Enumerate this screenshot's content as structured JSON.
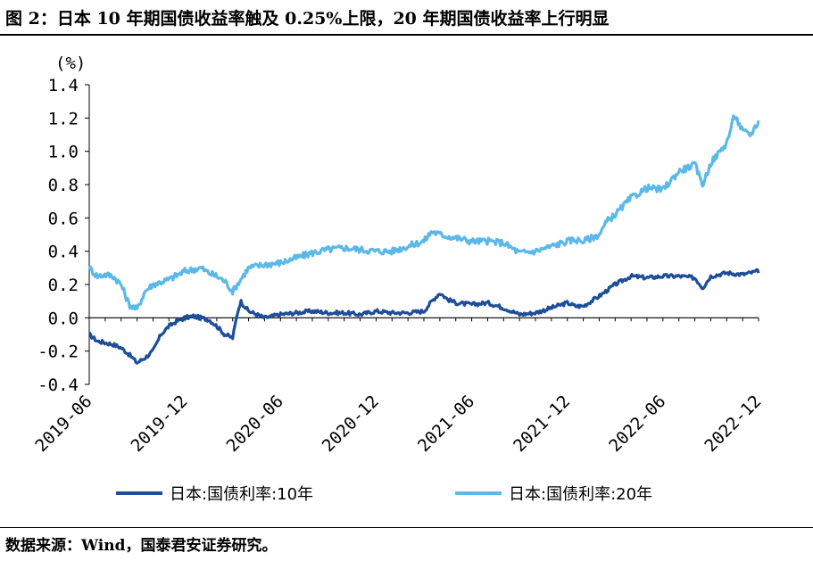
{
  "figure": {
    "title": "图 2：日本 10 年期国债收益率触及 0.25%上限，20 年期国债收益率上行明显",
    "source": "数据来源：Wind，国泰君安证券研究。"
  },
  "colors": {
    "series_10y": "#1F4E99",
    "series_20y": "#5BB9E9",
    "axis": "#000000"
  },
  "chart_data": {
    "type": "line",
    "title": "图 2：日本 10 年期国债收益率触及 0.25%上限，20 年期国债收益率上行明显",
    "ylabel": "(%)",
    "xlabel": "",
    "ylim": [
      -0.4,
      1.4
    ],
    "yticks": [
      "1.4",
      "1.2",
      "1.0",
      "0.8",
      "0.6",
      "0.4",
      "0.2",
      "0.0",
      "-0.2",
      "-0.4"
    ],
    "xlim_month_index": [
      0,
      42
    ],
    "xticks": [
      {
        "label": "2019-06",
        "month_index": 0
      },
      {
        "label": "2019-12",
        "month_index": 6
      },
      {
        "label": "2020-06",
        "month_index": 12
      },
      {
        "label": "2020-12",
        "month_index": 18
      },
      {
        "label": "2021-06",
        "month_index": 24
      },
      {
        "label": "2021-12",
        "month_index": 30
      },
      {
        "label": "2022-06",
        "month_index": 36
      },
      {
        "label": "2022-12",
        "month_index": 42
      }
    ],
    "legend_position": "bottom",
    "series": [
      {
        "name": "日本:国债利率:10年",
        "x": [
          0,
          0.5,
          1,
          1.5,
          2,
          2.5,
          3,
          3.5,
          4,
          4.5,
          5,
          5.5,
          6,
          6.5,
          7,
          7.5,
          8,
          8.5,
          9,
          9.3,
          9.5,
          10,
          10.5,
          11,
          11.5,
          12,
          13,
          14,
          15,
          16,
          17,
          18,
          19,
          20,
          21,
          21.5,
          22,
          22.5,
          23,
          24,
          25,
          26,
          26.5,
          27,
          28,
          29,
          30,
          30.5,
          31,
          32,
          33,
          34,
          35,
          36,
          37,
          38,
          38.5,
          39,
          40,
          41,
          42
        ],
        "values": [
          -0.1,
          -0.14,
          -0.15,
          -0.16,
          -0.18,
          -0.22,
          -0.27,
          -0.24,
          -0.2,
          -0.1,
          -0.05,
          -0.02,
          0.0,
          0.01,
          0.0,
          -0.01,
          -0.05,
          -0.1,
          -0.12,
          0.03,
          0.1,
          0.04,
          0.02,
          0.0,
          0.01,
          0.02,
          0.03,
          0.04,
          0.03,
          0.03,
          0.02,
          0.04,
          0.03,
          0.03,
          0.04,
          0.1,
          0.15,
          0.11,
          0.09,
          0.08,
          0.09,
          0.06,
          0.04,
          0.02,
          0.03,
          0.06,
          0.09,
          0.07,
          0.07,
          0.13,
          0.2,
          0.25,
          0.24,
          0.25,
          0.25,
          0.24,
          0.18,
          0.25,
          0.27,
          0.26,
          0.28
        ]
      },
      {
        "name": "日本:国债利率:20年",
        "x": [
          0,
          0.5,
          1,
          1.5,
          2,
          2.5,
          3,
          3.5,
          4,
          5,
          6,
          7,
          7.5,
          8,
          8.5,
          9,
          10,
          11,
          12,
          13,
          14,
          15,
          16,
          17,
          18,
          19,
          20,
          21,
          21.5,
          22,
          23,
          24,
          25,
          26,
          26.5,
          27,
          28,
          29,
          30,
          30.5,
          31,
          32,
          32.5,
          33,
          34,
          35,
          36,
          37,
          38,
          38.5,
          39,
          40,
          40.5,
          41,
          41.5,
          42
        ],
        "values": [
          0.3,
          0.25,
          0.26,
          0.25,
          0.2,
          0.08,
          0.05,
          0.16,
          0.2,
          0.23,
          0.28,
          0.3,
          0.27,
          0.25,
          0.22,
          0.16,
          0.3,
          0.32,
          0.33,
          0.36,
          0.39,
          0.41,
          0.42,
          0.41,
          0.4,
          0.4,
          0.43,
          0.46,
          0.52,
          0.5,
          0.48,
          0.46,
          0.46,
          0.45,
          0.42,
          0.39,
          0.4,
          0.43,
          0.46,
          0.47,
          0.46,
          0.5,
          0.58,
          0.62,
          0.72,
          0.78,
          0.77,
          0.88,
          0.92,
          0.8,
          0.93,
          1.05,
          1.22,
          1.12,
          1.1,
          1.18
        ]
      }
    ]
  }
}
